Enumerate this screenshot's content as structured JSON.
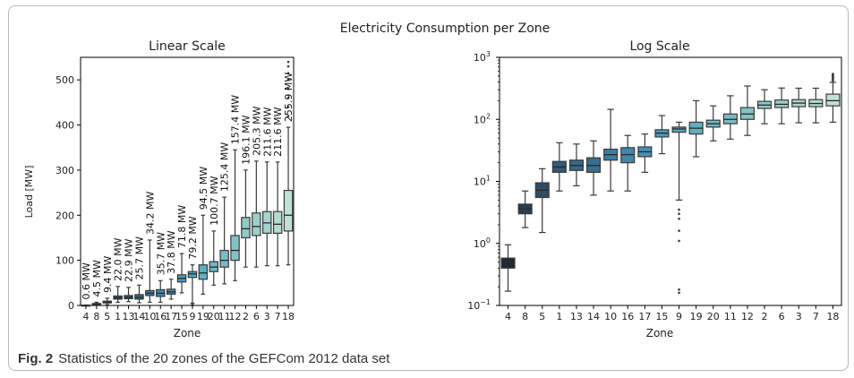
{
  "figure": {
    "suptitle": "Electricity Consumption per Zone",
    "caption_label": "Fig. 2",
    "caption_text": "Statistics of the 20 zones of the GEFCom 2012 data set"
  },
  "chart_data": [
    {
      "type": "box",
      "title": "Linear Scale",
      "xlabel": "Zone",
      "ylabel": "Load [MW]",
      "yscale": "linear",
      "ylim": [
        0,
        550
      ],
      "yticks": [
        0,
        100,
        200,
        300,
        400,
        500
      ],
      "categories": [
        "4",
        "8",
        "5",
        "1",
        "13",
        "14",
        "10",
        "16",
        "17",
        "15",
        "9",
        "19",
        "20",
        "11",
        "12",
        "2",
        "6",
        "3",
        "7",
        "18"
      ],
      "mean_labels": [
        "0.6 MW",
        "4.5 MW",
        "9.4 MW",
        "22.0 MW",
        "22.9 MW",
        "25.7 MW",
        "34.2 MW",
        "35.7 MW",
        "37.8 MW",
        "71.8 MW",
        "79.2 MW",
        "94.5 MW",
        "100.7 MW",
        "125.4 MW",
        "157.4 MW",
        "196.1 MW",
        "205.3 MW",
        "211.6 MW",
        "211.6 MW",
        "255.9 MW"
      ],
      "boxes": [
        {
          "zone": "4",
          "whislo": 0.17,
          "q1": 0.4,
          "med": 0.5,
          "q3": 0.58,
          "whishi": 0.95,
          "fliers": []
        },
        {
          "zone": "8",
          "whislo": 1.8,
          "q1": 3.0,
          "med": 3.6,
          "q3": 4.3,
          "whishi": 7,
          "fliers": []
        },
        {
          "zone": "5",
          "whislo": 1.5,
          "q1": 5.5,
          "med": 7.2,
          "q3": 9.5,
          "whishi": 16,
          "fliers": []
        },
        {
          "zone": "1",
          "whislo": 7,
          "q1": 14,
          "med": 17,
          "q3": 21,
          "whishi": 42,
          "fliers": []
        },
        {
          "zone": "13",
          "whislo": 8.5,
          "q1": 15,
          "med": 18,
          "q3": 22,
          "whishi": 40,
          "fliers": []
        },
        {
          "zone": "14",
          "whislo": 6,
          "q1": 14,
          "med": 18,
          "q3": 24,
          "whishi": 45,
          "fliers": []
        },
        {
          "zone": "10",
          "whislo": 7,
          "q1": 22,
          "med": 27,
          "q3": 33,
          "whishi": 145,
          "fliers": []
        },
        {
          "zone": "16",
          "whislo": 7,
          "q1": 20,
          "med": 27,
          "q3": 35,
          "whishi": 55,
          "fliers": []
        },
        {
          "zone": "17",
          "whislo": 14,
          "q1": 25,
          "med": 30,
          "q3": 36,
          "whishi": 58,
          "fliers": []
        },
        {
          "zone": "15",
          "whislo": 28,
          "q1": 52,
          "med": 60,
          "q3": 68,
          "whishi": 115,
          "fliers": []
        },
        {
          "zone": "9",
          "whislo": 5,
          "q1": 62,
          "med": 70,
          "q3": 75,
          "whishi": 90,
          "fliers": [
            0.16,
            0.18,
            1.1,
            1.6,
            2.5,
            3,
            3.5
          ]
        },
        {
          "zone": "19",
          "whislo": 25,
          "q1": 58,
          "med": 72,
          "q3": 90,
          "whishi": 200,
          "fliers": []
        },
        {
          "zone": "20",
          "whislo": 45,
          "q1": 75,
          "med": 85,
          "q3": 97,
          "whishi": 165,
          "fliers": []
        },
        {
          "zone": "11",
          "whislo": 48,
          "q1": 85,
          "med": 100,
          "q3": 122,
          "whishi": 240,
          "fliers": []
        },
        {
          "zone": "12",
          "whislo": 55,
          "q1": 100,
          "med": 122,
          "q3": 155,
          "whishi": 345,
          "fliers": []
        },
        {
          "zone": "2",
          "whislo": 85,
          "q1": 150,
          "med": 170,
          "q3": 195,
          "whishi": 300,
          "fliers": []
        },
        {
          "zone": "6",
          "whislo": 85,
          "q1": 155,
          "med": 175,
          "q3": 205,
          "whishi": 320,
          "fliers": []
        },
        {
          "zone": "3",
          "whislo": 88,
          "q1": 160,
          "med": 183,
          "q3": 208,
          "whishi": 318,
          "fliers": []
        },
        {
          "zone": "7",
          "whislo": 88,
          "q1": 160,
          "med": 180,
          "q3": 208,
          "whishi": 318,
          "fliers": []
        },
        {
          "zone": "18",
          "whislo": 90,
          "q1": 165,
          "med": 200,
          "q3": 255,
          "whishi": 395,
          "fliers": [
            420,
            440,
            460,
            480,
            500,
            515,
            530,
            540
          ]
        }
      ],
      "colors": [
        "#202a33",
        "#2a3d4f",
        "#2d4c66",
        "#2f5a78",
        "#336a8a",
        "#356e93",
        "#3a7ea3",
        "#3f88ad",
        "#4590b4",
        "#4c9ab9",
        "#57a4bd",
        "#62adbf",
        "#6db6c2",
        "#78bcc3",
        "#84c3c5",
        "#90c9c8",
        "#9bcfcb",
        "#a6d5cd",
        "#b2dbd0",
        "#bfe2d4"
      ],
      "grid": false
    },
    {
      "type": "box",
      "title": "Log Scale",
      "xlabel": "Zone",
      "yscale": "log",
      "ylim": [
        0.1,
        1000
      ],
      "ytick_labels": [
        "10",
        "10",
        "10",
        "10",
        "10"
      ],
      "ytick_exponents": [
        "−1",
        "0",
        "1",
        "2",
        "3"
      ],
      "categories": [
        "4",
        "8",
        "5",
        "1",
        "13",
        "14",
        "10",
        "16",
        "17",
        "15",
        "9",
        "19",
        "20",
        "11",
        "12",
        "2",
        "6",
        "3",
        "7",
        "18"
      ],
      "grid": false
    }
  ]
}
